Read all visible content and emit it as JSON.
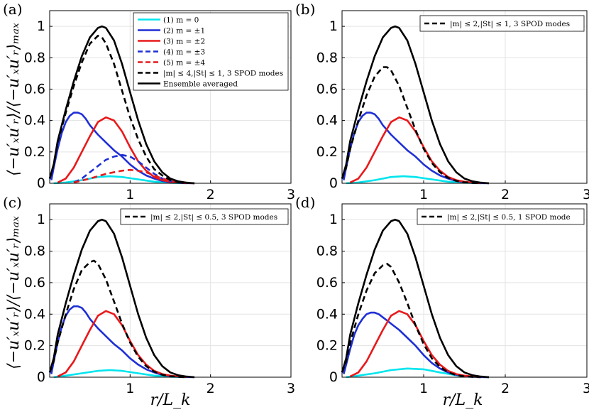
{
  "figure": {
    "xlabel": "r/L_k",
    "ylabel": "⟨−u′ₓu′ᵣ⟩/⟨−u′ₓu′ᵣ⟩ₘₐₓ"
  },
  "chart_data": [
    {
      "type": "line",
      "panel_label": "(a)",
      "xlim": [
        0,
        3
      ],
      "ylim": [
        0,
        1.1
      ],
      "xticks": [
        1,
        2,
        3
      ],
      "yticks": [
        0,
        0.2,
        0.4,
        0.6,
        0.8,
        1
      ],
      "grid": true,
      "legend_position": "top-right",
      "series": [
        {
          "name": "(1) m = 0",
          "color": "#00e5ee",
          "dash": "solid",
          "x": [
            0.05,
            0.2,
            0.4,
            0.6,
            0.75,
            0.9,
            1.1,
            1.3,
            1.5,
            1.7
          ],
          "y": [
            0,
            0.005,
            0.02,
            0.04,
            0.045,
            0.04,
            0.025,
            0.01,
            0.003,
            0
          ]
        },
        {
          "name": "(2) m = ±1",
          "color": "#1f2fd6",
          "dash": "solid",
          "x": [
            0.02,
            0.05,
            0.1,
            0.15,
            0.2,
            0.25,
            0.3,
            0.35,
            0.4,
            0.45,
            0.5,
            0.55,
            0.6,
            0.7,
            0.8,
            0.9,
            1.0,
            1.1,
            1.2,
            1.3,
            1.4,
            1.5,
            1.6,
            1.7,
            1.8
          ],
          "y": [
            0.02,
            0.1,
            0.22,
            0.32,
            0.39,
            0.43,
            0.45,
            0.45,
            0.44,
            0.41,
            0.37,
            0.34,
            0.31,
            0.26,
            0.21,
            0.17,
            0.12,
            0.08,
            0.05,
            0.03,
            0.015,
            0.007,
            0.003,
            0.001,
            0
          ]
        },
        {
          "name": "(3) m = ±2",
          "color": "#e8191b",
          "dash": "solid",
          "x": [
            0.1,
            0.2,
            0.3,
            0.4,
            0.5,
            0.6,
            0.7,
            0.8,
            0.9,
            1.0,
            1.1,
            1.2,
            1.3,
            1.4,
            1.5,
            1.6,
            1.7
          ],
          "y": [
            0.005,
            0.03,
            0.1,
            0.2,
            0.3,
            0.39,
            0.42,
            0.4,
            0.33,
            0.23,
            0.14,
            0.08,
            0.04,
            0.02,
            0.01,
            0.004,
            0.001
          ]
        },
        {
          "name": "(4) m = ±3",
          "color": "#1f2fd6",
          "dash": "dashed",
          "x": [
            0.3,
            0.4,
            0.5,
            0.6,
            0.7,
            0.8,
            0.9,
            1.0,
            1.1,
            1.2,
            1.3,
            1.4,
            1.5,
            1.6,
            1.7
          ],
          "y": [
            0.005,
            0.03,
            0.07,
            0.11,
            0.15,
            0.17,
            0.18,
            0.17,
            0.14,
            0.1,
            0.06,
            0.03,
            0.015,
            0.005,
            0
          ]
        },
        {
          "name": "(5) m = ±4",
          "color": "#e8191b",
          "dash": "dashed",
          "x": [
            0.3,
            0.5,
            0.7,
            0.9,
            1.0,
            1.1,
            1.2,
            1.3,
            1.4,
            1.5,
            1.6,
            1.7,
            1.8
          ],
          "y": [
            0.005,
            0.03,
            0.06,
            0.08,
            0.085,
            0.08,
            0.07,
            0.05,
            0.03,
            0.015,
            0.007,
            0.002,
            0
          ]
        },
        {
          "name": "|m| ≤ 4,|St| ≤ 1, 3 SPOD modes",
          "color": "#000000",
          "dash": "dashed",
          "x": [
            0,
            0.05,
            0.1,
            0.2,
            0.3,
            0.4,
            0.5,
            0.6,
            0.65,
            0.7,
            0.8,
            0.9,
            1.0,
            1.1,
            1.2,
            1.3,
            1.4,
            1.5,
            1.6,
            1.7,
            1.8
          ],
          "y": [
            0.03,
            0.12,
            0.26,
            0.45,
            0.62,
            0.77,
            0.89,
            0.94,
            0.93,
            0.89,
            0.76,
            0.59,
            0.42,
            0.28,
            0.17,
            0.09,
            0.05,
            0.02,
            0.008,
            0.003,
            0
          ]
        },
        {
          "name": "Ensemble averaged",
          "color": "#000000",
          "dash": "solid",
          "x": [
            0,
            0.05,
            0.1,
            0.2,
            0.3,
            0.4,
            0.5,
            0.6,
            0.65,
            0.7,
            0.8,
            0.9,
            1.0,
            1.1,
            1.2,
            1.3,
            1.4,
            1.5,
            1.6,
            1.7,
            1.8
          ],
          "y": [
            0.03,
            0.12,
            0.27,
            0.47,
            0.65,
            0.81,
            0.93,
            0.99,
            1.0,
            0.99,
            0.91,
            0.76,
            0.58,
            0.4,
            0.25,
            0.14,
            0.07,
            0.03,
            0.012,
            0.004,
            0
          ]
        }
      ]
    },
    {
      "type": "line",
      "panel_label": "(b)",
      "xlim": [
        0,
        3
      ],
      "ylim": [
        0,
        1.1
      ],
      "xticks": [
        1,
        2,
        3
      ],
      "yticks": [
        0,
        0.2,
        0.4,
        0.6,
        0.8,
        1
      ],
      "grid": true,
      "legend_position": "top-right",
      "series": [
        {
          "name": "m = 0",
          "color": "#00e5ee",
          "dash": "solid",
          "legend": false,
          "x": [
            0.05,
            0.2,
            0.4,
            0.6,
            0.75,
            0.9,
            1.1,
            1.3,
            1.5,
            1.7
          ],
          "y": [
            0,
            0.005,
            0.02,
            0.04,
            0.045,
            0.04,
            0.025,
            0.01,
            0.003,
            0
          ]
        },
        {
          "name": "m = ±1",
          "color": "#1f2fd6",
          "dash": "solid",
          "legend": false,
          "x": [
            0.02,
            0.05,
            0.1,
            0.15,
            0.2,
            0.25,
            0.3,
            0.35,
            0.4,
            0.45,
            0.5,
            0.55,
            0.6,
            0.7,
            0.8,
            0.9,
            1.0,
            1.1,
            1.2,
            1.3,
            1.4,
            1.5,
            1.6,
            1.7,
            1.8
          ],
          "y": [
            0.02,
            0.1,
            0.22,
            0.32,
            0.39,
            0.43,
            0.45,
            0.45,
            0.44,
            0.41,
            0.37,
            0.34,
            0.31,
            0.26,
            0.21,
            0.17,
            0.12,
            0.08,
            0.05,
            0.03,
            0.015,
            0.007,
            0.003,
            0.001,
            0
          ]
        },
        {
          "name": "m = ±2",
          "color": "#e8191b",
          "dash": "solid",
          "legend": false,
          "x": [
            0.1,
            0.2,
            0.3,
            0.4,
            0.5,
            0.6,
            0.7,
            0.8,
            0.9,
            1.0,
            1.1,
            1.2,
            1.3,
            1.4,
            1.5,
            1.6,
            1.7
          ],
          "y": [
            0.005,
            0.03,
            0.1,
            0.2,
            0.3,
            0.39,
            0.42,
            0.4,
            0.33,
            0.23,
            0.14,
            0.08,
            0.04,
            0.02,
            0.01,
            0.004,
            0.001
          ]
        },
        {
          "name": "|m| ≤ 2,|St| ≤ 1, 3 SPOD modes",
          "color": "#000000",
          "dash": "dashed",
          "x": [
            0,
            0.05,
            0.1,
            0.2,
            0.3,
            0.4,
            0.5,
            0.55,
            0.6,
            0.7,
            0.8,
            0.9,
            1.0,
            1.1,
            1.2,
            1.3,
            1.4,
            1.5,
            1.6,
            1.7
          ],
          "y": [
            0.03,
            0.1,
            0.22,
            0.4,
            0.56,
            0.68,
            0.74,
            0.74,
            0.72,
            0.62,
            0.48,
            0.34,
            0.22,
            0.13,
            0.07,
            0.035,
            0.015,
            0.006,
            0.002,
            0
          ]
        },
        {
          "name": "Ensemble averaged",
          "color": "#000000",
          "dash": "solid",
          "legend": false,
          "x": [
            0,
            0.05,
            0.1,
            0.2,
            0.3,
            0.4,
            0.5,
            0.6,
            0.65,
            0.7,
            0.8,
            0.9,
            1.0,
            1.1,
            1.2,
            1.3,
            1.4,
            1.5,
            1.6,
            1.7,
            1.8
          ],
          "y": [
            0.03,
            0.12,
            0.27,
            0.47,
            0.65,
            0.81,
            0.93,
            0.99,
            1.0,
            0.99,
            0.91,
            0.76,
            0.58,
            0.4,
            0.25,
            0.14,
            0.07,
            0.03,
            0.012,
            0.004,
            0
          ]
        }
      ]
    },
    {
      "type": "line",
      "panel_label": "(c)",
      "xlim": [
        0,
        3
      ],
      "ylim": [
        0,
        1.1
      ],
      "xticks": [
        1,
        2,
        3
      ],
      "yticks": [
        0,
        0.2,
        0.4,
        0.6,
        0.8,
        1
      ],
      "grid": true,
      "legend_position": "top-right",
      "series": [
        {
          "name": "m = 0",
          "color": "#00e5ee",
          "dash": "solid",
          "legend": false,
          "x": [
            0.05,
            0.2,
            0.4,
            0.6,
            0.75,
            0.9,
            1.1,
            1.3,
            1.5,
            1.7
          ],
          "y": [
            0,
            0.01,
            0.025,
            0.04,
            0.045,
            0.04,
            0.025,
            0.01,
            0.003,
            0
          ]
        },
        {
          "name": "m = ±1",
          "color": "#1f2fd6",
          "dash": "solid",
          "legend": false,
          "x": [
            0.02,
            0.05,
            0.1,
            0.15,
            0.2,
            0.25,
            0.3,
            0.35,
            0.4,
            0.45,
            0.5,
            0.55,
            0.6,
            0.7,
            0.8,
            0.9,
            1.0,
            1.1,
            1.2,
            1.3,
            1.4,
            1.5,
            1.6,
            1.7,
            1.8
          ],
          "y": [
            0.02,
            0.1,
            0.22,
            0.32,
            0.39,
            0.43,
            0.45,
            0.45,
            0.44,
            0.41,
            0.37,
            0.34,
            0.31,
            0.26,
            0.21,
            0.17,
            0.12,
            0.08,
            0.05,
            0.03,
            0.015,
            0.007,
            0.003,
            0.001,
            0
          ]
        },
        {
          "name": "m = ±2",
          "color": "#e8191b",
          "dash": "solid",
          "legend": false,
          "x": [
            0.1,
            0.2,
            0.3,
            0.4,
            0.5,
            0.6,
            0.7,
            0.8,
            0.9,
            1.0,
            1.1,
            1.2,
            1.3,
            1.4,
            1.5,
            1.6,
            1.7
          ],
          "y": [
            0.005,
            0.03,
            0.1,
            0.2,
            0.3,
            0.39,
            0.42,
            0.4,
            0.33,
            0.23,
            0.14,
            0.08,
            0.04,
            0.02,
            0.01,
            0.004,
            0.001
          ]
        },
        {
          "name": "|m| ≤ 2,|St| ≤ 0.5, 3 SPOD modes",
          "color": "#000000",
          "dash": "dashed",
          "x": [
            0,
            0.05,
            0.1,
            0.2,
            0.3,
            0.4,
            0.5,
            0.55,
            0.6,
            0.7,
            0.8,
            0.9,
            1.0,
            1.1,
            1.2,
            1.3,
            1.4,
            1.5,
            1.6,
            1.7
          ],
          "y": [
            0.03,
            0.1,
            0.22,
            0.4,
            0.56,
            0.68,
            0.73,
            0.74,
            0.72,
            0.62,
            0.48,
            0.34,
            0.22,
            0.13,
            0.07,
            0.035,
            0.015,
            0.006,
            0.002,
            0
          ]
        },
        {
          "name": "Ensemble averaged",
          "color": "#000000",
          "dash": "solid",
          "legend": false,
          "x": [
            0,
            0.05,
            0.1,
            0.2,
            0.3,
            0.4,
            0.5,
            0.6,
            0.65,
            0.7,
            0.8,
            0.9,
            1.0,
            1.1,
            1.2,
            1.3,
            1.4,
            1.5,
            1.6,
            1.7,
            1.8
          ],
          "y": [
            0.03,
            0.12,
            0.27,
            0.47,
            0.65,
            0.81,
            0.93,
            0.99,
            1.0,
            0.99,
            0.91,
            0.76,
            0.58,
            0.4,
            0.25,
            0.14,
            0.07,
            0.03,
            0.012,
            0.004,
            0
          ]
        }
      ]
    },
    {
      "type": "line",
      "panel_label": "(d)",
      "xlim": [
        0,
        3
      ],
      "ylim": [
        0,
        1.1
      ],
      "xticks": [
        1,
        2,
        3
      ],
      "yticks": [
        0,
        0.2,
        0.4,
        0.6,
        0.8,
        1
      ],
      "grid": true,
      "legend_position": "top-right",
      "series": [
        {
          "name": "m = 0",
          "color": "#00e5ee",
          "dash": "solid",
          "legend": false,
          "x": [
            0.05,
            0.2,
            0.4,
            0.6,
            0.8,
            1.0,
            1.2,
            1.4,
            1.6,
            1.8
          ],
          "y": [
            0,
            0.01,
            0.025,
            0.045,
            0.055,
            0.05,
            0.03,
            0.012,
            0.003,
            0
          ]
        },
        {
          "name": "m = ±1",
          "color": "#1f2fd6",
          "dash": "solid",
          "legend": false,
          "x": [
            0.02,
            0.05,
            0.1,
            0.15,
            0.2,
            0.25,
            0.3,
            0.35,
            0.4,
            0.45,
            0.5,
            0.55,
            0.6,
            0.7,
            0.8,
            0.9,
            1.0,
            1.1,
            1.2,
            1.3,
            1.4,
            1.5,
            1.6,
            1.7,
            1.8
          ],
          "y": [
            0.02,
            0.08,
            0.18,
            0.27,
            0.33,
            0.37,
            0.4,
            0.41,
            0.41,
            0.4,
            0.38,
            0.36,
            0.34,
            0.3,
            0.25,
            0.2,
            0.14,
            0.09,
            0.055,
            0.03,
            0.015,
            0.007,
            0.003,
            0.001,
            0
          ]
        },
        {
          "name": "m = ±2",
          "color": "#e8191b",
          "dash": "solid",
          "legend": false,
          "x": [
            0.1,
            0.2,
            0.3,
            0.4,
            0.5,
            0.6,
            0.7,
            0.8,
            0.9,
            1.0,
            1.1,
            1.2,
            1.3,
            1.4,
            1.5,
            1.6,
            1.7
          ],
          "y": [
            0.005,
            0.03,
            0.1,
            0.2,
            0.3,
            0.39,
            0.42,
            0.4,
            0.33,
            0.23,
            0.14,
            0.08,
            0.04,
            0.02,
            0.01,
            0.004,
            0.001
          ]
        },
        {
          "name": "|m| ≤ 2,|St| ≤ 0.5, 1 SPOD mode",
          "color": "#000000",
          "dash": "dashed",
          "x": [
            0,
            0.05,
            0.1,
            0.2,
            0.3,
            0.4,
            0.5,
            0.55,
            0.6,
            0.7,
            0.8,
            0.9,
            1.0,
            1.1,
            1.2,
            1.3,
            1.4,
            1.5,
            1.6,
            1.7
          ],
          "y": [
            0.03,
            0.1,
            0.22,
            0.4,
            0.55,
            0.66,
            0.71,
            0.72,
            0.7,
            0.6,
            0.47,
            0.33,
            0.21,
            0.12,
            0.065,
            0.03,
            0.013,
            0.005,
            0.002,
            0
          ]
        },
        {
          "name": "Ensemble averaged",
          "color": "#000000",
          "dash": "solid",
          "legend": false,
          "x": [
            0,
            0.05,
            0.1,
            0.2,
            0.3,
            0.4,
            0.5,
            0.6,
            0.65,
            0.7,
            0.8,
            0.9,
            1.0,
            1.1,
            1.2,
            1.3,
            1.4,
            1.5,
            1.6,
            1.7,
            1.8
          ],
          "y": [
            0.03,
            0.12,
            0.27,
            0.47,
            0.65,
            0.81,
            0.93,
            0.99,
            1.0,
            0.99,
            0.91,
            0.76,
            0.58,
            0.4,
            0.25,
            0.14,
            0.07,
            0.03,
            0.012,
            0.004,
            0
          ]
        }
      ]
    }
  ]
}
